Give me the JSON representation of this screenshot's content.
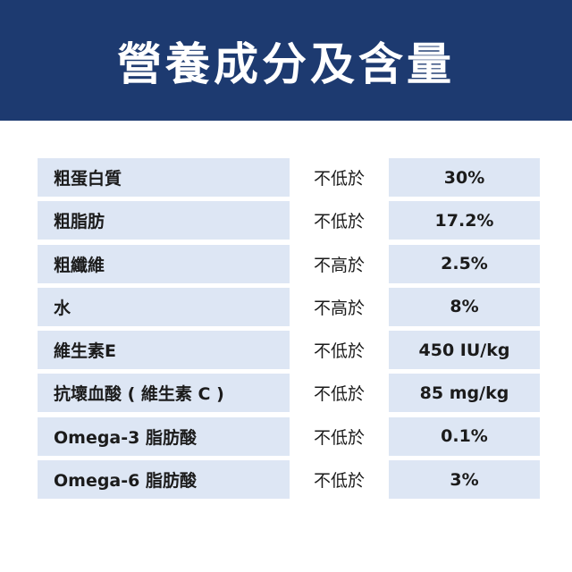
{
  "header": {
    "title": "營養成分及含量"
  },
  "table": {
    "rows": [
      [
        "粗蛋白質",
        "不低於",
        "30%"
      ],
      [
        "粗脂肪",
        "不低於",
        "17.2%"
      ],
      [
        "粗纖維",
        "不高於",
        "2.5%"
      ],
      [
        "水",
        "不高於",
        "8%"
      ],
      [
        "維生素E",
        "不低於",
        "450 IU/kg"
      ],
      [
        "抗壞血酸 ( 維生素 C )",
        "不低於",
        "85 mg/kg"
      ],
      [
        "Omega-3 脂肪酸",
        "不低於",
        "0.1%"
      ],
      [
        "Omega-6 脂肪酸",
        "不低於",
        "3%"
      ]
    ]
  }
}
